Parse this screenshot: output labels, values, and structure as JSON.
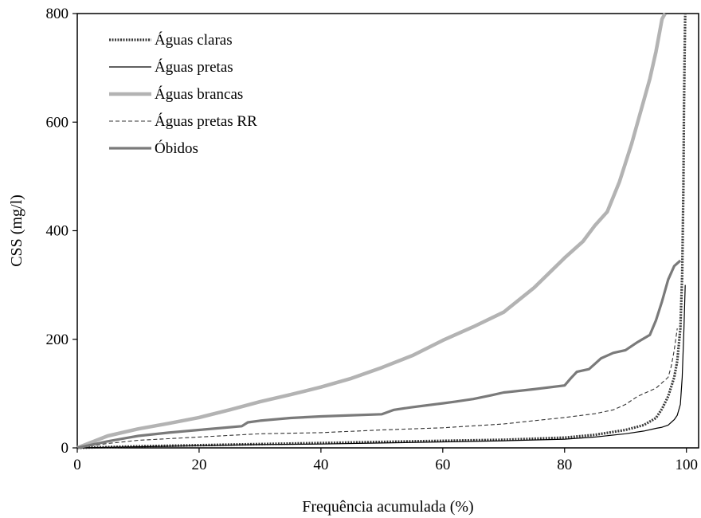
{
  "chart_data": {
    "type": "line",
    "title": "",
    "xlabel": "Frequência acumulada (%)",
    "ylabel": "CSS (mg/l)",
    "xlim": [
      0,
      102
    ],
    "ylim": [
      0,
      800
    ],
    "xticks": [
      0,
      20,
      40,
      60,
      80,
      100
    ],
    "yticks": [
      0,
      200,
      400,
      600,
      800
    ],
    "xtick_labels": [
      "0",
      "20",
      "40",
      "60",
      "80",
      "100"
    ],
    "ytick_labels": [
      "0",
      "200",
      "400",
      "600",
      "800"
    ],
    "grid": false,
    "legend": "top-left",
    "series": [
      {
        "name": "Águas claras",
        "color": "#3a3a3a",
        "style": "thick-dotted",
        "x": [
          0,
          10,
          20,
          30,
          40,
          50,
          60,
          70,
          80,
          85,
          90,
          93,
          95,
          96,
          97,
          98,
          98.5,
          99,
          99.3,
          99.5,
          99.6,
          99.7,
          99.8
        ],
        "y": [
          0,
          3,
          5,
          7,
          9,
          11,
          13,
          15,
          19,
          24,
          33,
          42,
          55,
          72,
          95,
          130,
          160,
          220,
          320,
          480,
          620,
          720,
          800
        ]
      },
      {
        "name": "Águas pretas",
        "color": "#000000",
        "style": "thin-solid",
        "x": [
          0,
          10,
          20,
          30,
          40,
          50,
          60,
          70,
          80,
          85,
          90,
          93,
          95,
          96,
          97,
          97.5,
          98,
          98.5,
          99,
          99.3,
          99.6,
          99.8
        ],
        "y": [
          0,
          2,
          4,
          6,
          7,
          9,
          11,
          13,
          16,
          20,
          26,
          31,
          36,
          38,
          42,
          47,
          52,
          60,
          80,
          130,
          220,
          300
        ]
      },
      {
        "name": "Águas brancas",
        "color": "#b3b3b3",
        "style": "thick-light",
        "x": [
          0,
          5,
          10,
          15,
          20,
          25,
          30,
          35,
          40,
          45,
          50,
          55,
          60,
          65,
          70,
          75,
          80,
          83,
          85,
          87,
          89,
          91,
          92,
          93,
          94,
          95,
          95.5,
          96,
          96.5
        ],
        "y": [
          0,
          22,
          35,
          45,
          56,
          70,
          85,
          98,
          112,
          128,
          148,
          170,
          198,
          223,
          250,
          295,
          350,
          380,
          410,
          435,
          490,
          560,
          600,
          640,
          680,
          730,
          760,
          790,
          800
        ]
      },
      {
        "name": "Águas pretas RR",
        "color": "#333333",
        "style": "dashed",
        "x": [
          0,
          5,
          10,
          20,
          30,
          40,
          50,
          60,
          70,
          75,
          80,
          85,
          88,
          90,
          92,
          94,
          95,
          96,
          97,
          97.5,
          98,
          98.5
        ],
        "y": [
          0,
          8,
          14,
          20,
          26,
          28,
          33,
          37,
          44,
          50,
          56,
          63,
          70,
          80,
          95,
          105,
          110,
          120,
          130,
          150,
          180,
          220
        ]
      },
      {
        "name": "Óbidos",
        "color": "#7a7a7a",
        "style": "thick-solid",
        "x": [
          0,
          5,
          8,
          10,
          15,
          20,
          25,
          27,
          28,
          30,
          35,
          40,
          45,
          50,
          52,
          55,
          60,
          62,
          65,
          68,
          70,
          75,
          80,
          81,
          82,
          84,
          85,
          86,
          87,
          88,
          90,
          92,
          94,
          95,
          96,
          97,
          98,
          99
        ],
        "y": [
          0,
          12,
          18,
          22,
          28,
          33,
          38,
          40,
          47,
          50,
          55,
          58,
          60,
          62,
          70,
          75,
          82,
          85,
          90,
          97,
          102,
          108,
          115,
          128,
          140,
          145,
          155,
          165,
          170,
          175,
          180,
          195,
          208,
          235,
          270,
          310,
          335,
          345
        ]
      }
    ]
  }
}
